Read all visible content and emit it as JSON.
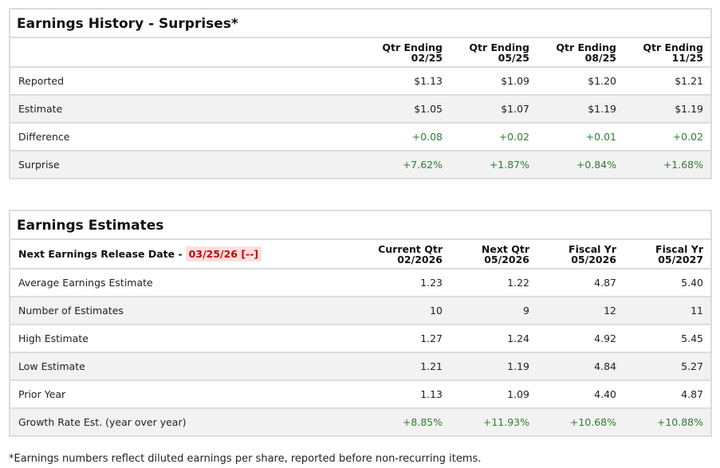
{
  "history": {
    "title": "Earnings History - Surprises*",
    "columns": [
      [
        "Qtr Ending",
        "02/25"
      ],
      [
        "Qtr Ending",
        "05/25"
      ],
      [
        "Qtr Ending",
        "08/25"
      ],
      [
        "Qtr Ending",
        "11/25"
      ]
    ],
    "rows": [
      {
        "label": "Reported",
        "values": [
          "$1.13",
          "$1.09",
          "$1.20",
          "$1.21"
        ],
        "positive": false
      },
      {
        "label": "Estimate",
        "values": [
          "$1.05",
          "$1.07",
          "$1.19",
          "$1.19"
        ],
        "positive": false
      },
      {
        "label": "Difference",
        "values": [
          "+0.08",
          "+0.02",
          "+0.01",
          "+0.02"
        ],
        "positive": true
      },
      {
        "label": "Surprise",
        "values": [
          "+7.62%",
          "+1.87%",
          "+0.84%",
          "+1.68%"
        ],
        "positive": true
      }
    ]
  },
  "estimates": {
    "title": "Earnings Estimates",
    "release_label": "Next Earnings Release Date -",
    "release_date": "03/25/26 [--]",
    "columns": [
      [
        "Current Qtr",
        "02/2026"
      ],
      [
        "Next Qtr",
        "05/2026"
      ],
      [
        "Fiscal Yr",
        "05/2026"
      ],
      [
        "Fiscal Yr",
        "05/2027"
      ]
    ],
    "rows": [
      {
        "label": "Average Earnings Estimate",
        "values": [
          "1.23",
          "1.22",
          "4.87",
          "5.40"
        ],
        "positive": false
      },
      {
        "label": "Number of Estimates",
        "values": [
          "10",
          "9",
          "12",
          "11"
        ],
        "positive": false
      },
      {
        "label": "High Estimate",
        "values": [
          "1.27",
          "1.24",
          "4.92",
          "5.45"
        ],
        "positive": false
      },
      {
        "label": "Low Estimate",
        "values": [
          "1.21",
          "1.19",
          "4.84",
          "5.27"
        ],
        "positive": false
      },
      {
        "label": "Prior Year",
        "values": [
          "1.13",
          "1.09",
          "4.40",
          "4.87"
        ],
        "positive": false
      },
      {
        "label": "Growth Rate Est. (year over year)",
        "values": [
          "+8.85%",
          "+11.93%",
          "+10.68%",
          "+10.88%"
        ],
        "positive": true
      }
    ]
  },
  "footnote": "*Earnings numbers reflect diluted earnings per share, reported before non-recurring items.",
  "colors": {
    "positive": "#2e7d32",
    "date_text": "#cc0000",
    "date_bg": "#fde0e0",
    "alt_row": "#f2f2f2"
  }
}
